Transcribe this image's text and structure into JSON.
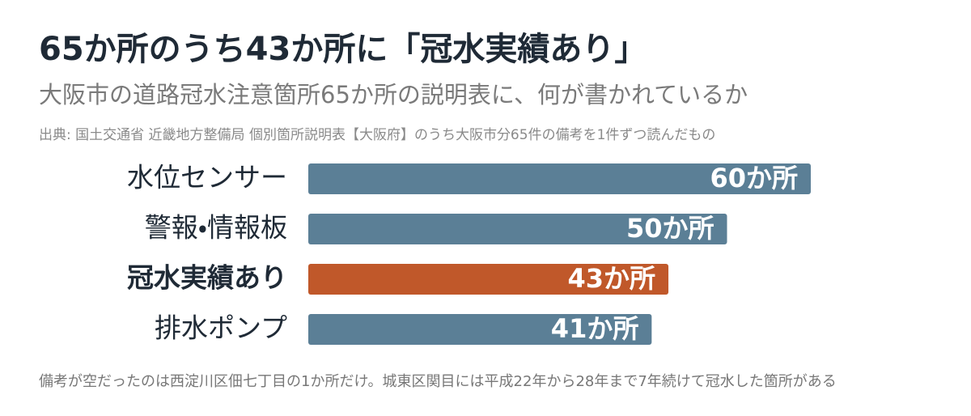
{
  "chart_data": {
    "type": "bar",
    "orientation": "horizontal",
    "title": "65か所のうち43か所に「冠水実績あり」",
    "subtitle": "大阪市の道路冠水注意箇所65か所の説明表に、何が書かれているか",
    "source": "出典: 国土交通省 近畿地方整備局 個別箇所説明表【大阪府】のうち大阪市分65件の備考を1件ずつ読んだもの",
    "categories": [
      "水位センサー",
      "警報・情報板",
      "冠水実績あり",
      "排水ポンプ"
    ],
    "values": [
      60,
      50,
      43,
      41
    ],
    "value_labels": [
      "60か所",
      "50か所",
      "43か所",
      "41か所"
    ],
    "color": "#5b7f96",
    "colors": [
      "#5b7f96",
      "#5b7f96",
      "#c0582a",
      "#5b7f96"
    ],
    "footnote": "備考が空だったのは西淀川区佃七丁目の1か所だけ。城東区関目には平成22年から28年まで7年続けて冠水した箇所がある"
  }
}
